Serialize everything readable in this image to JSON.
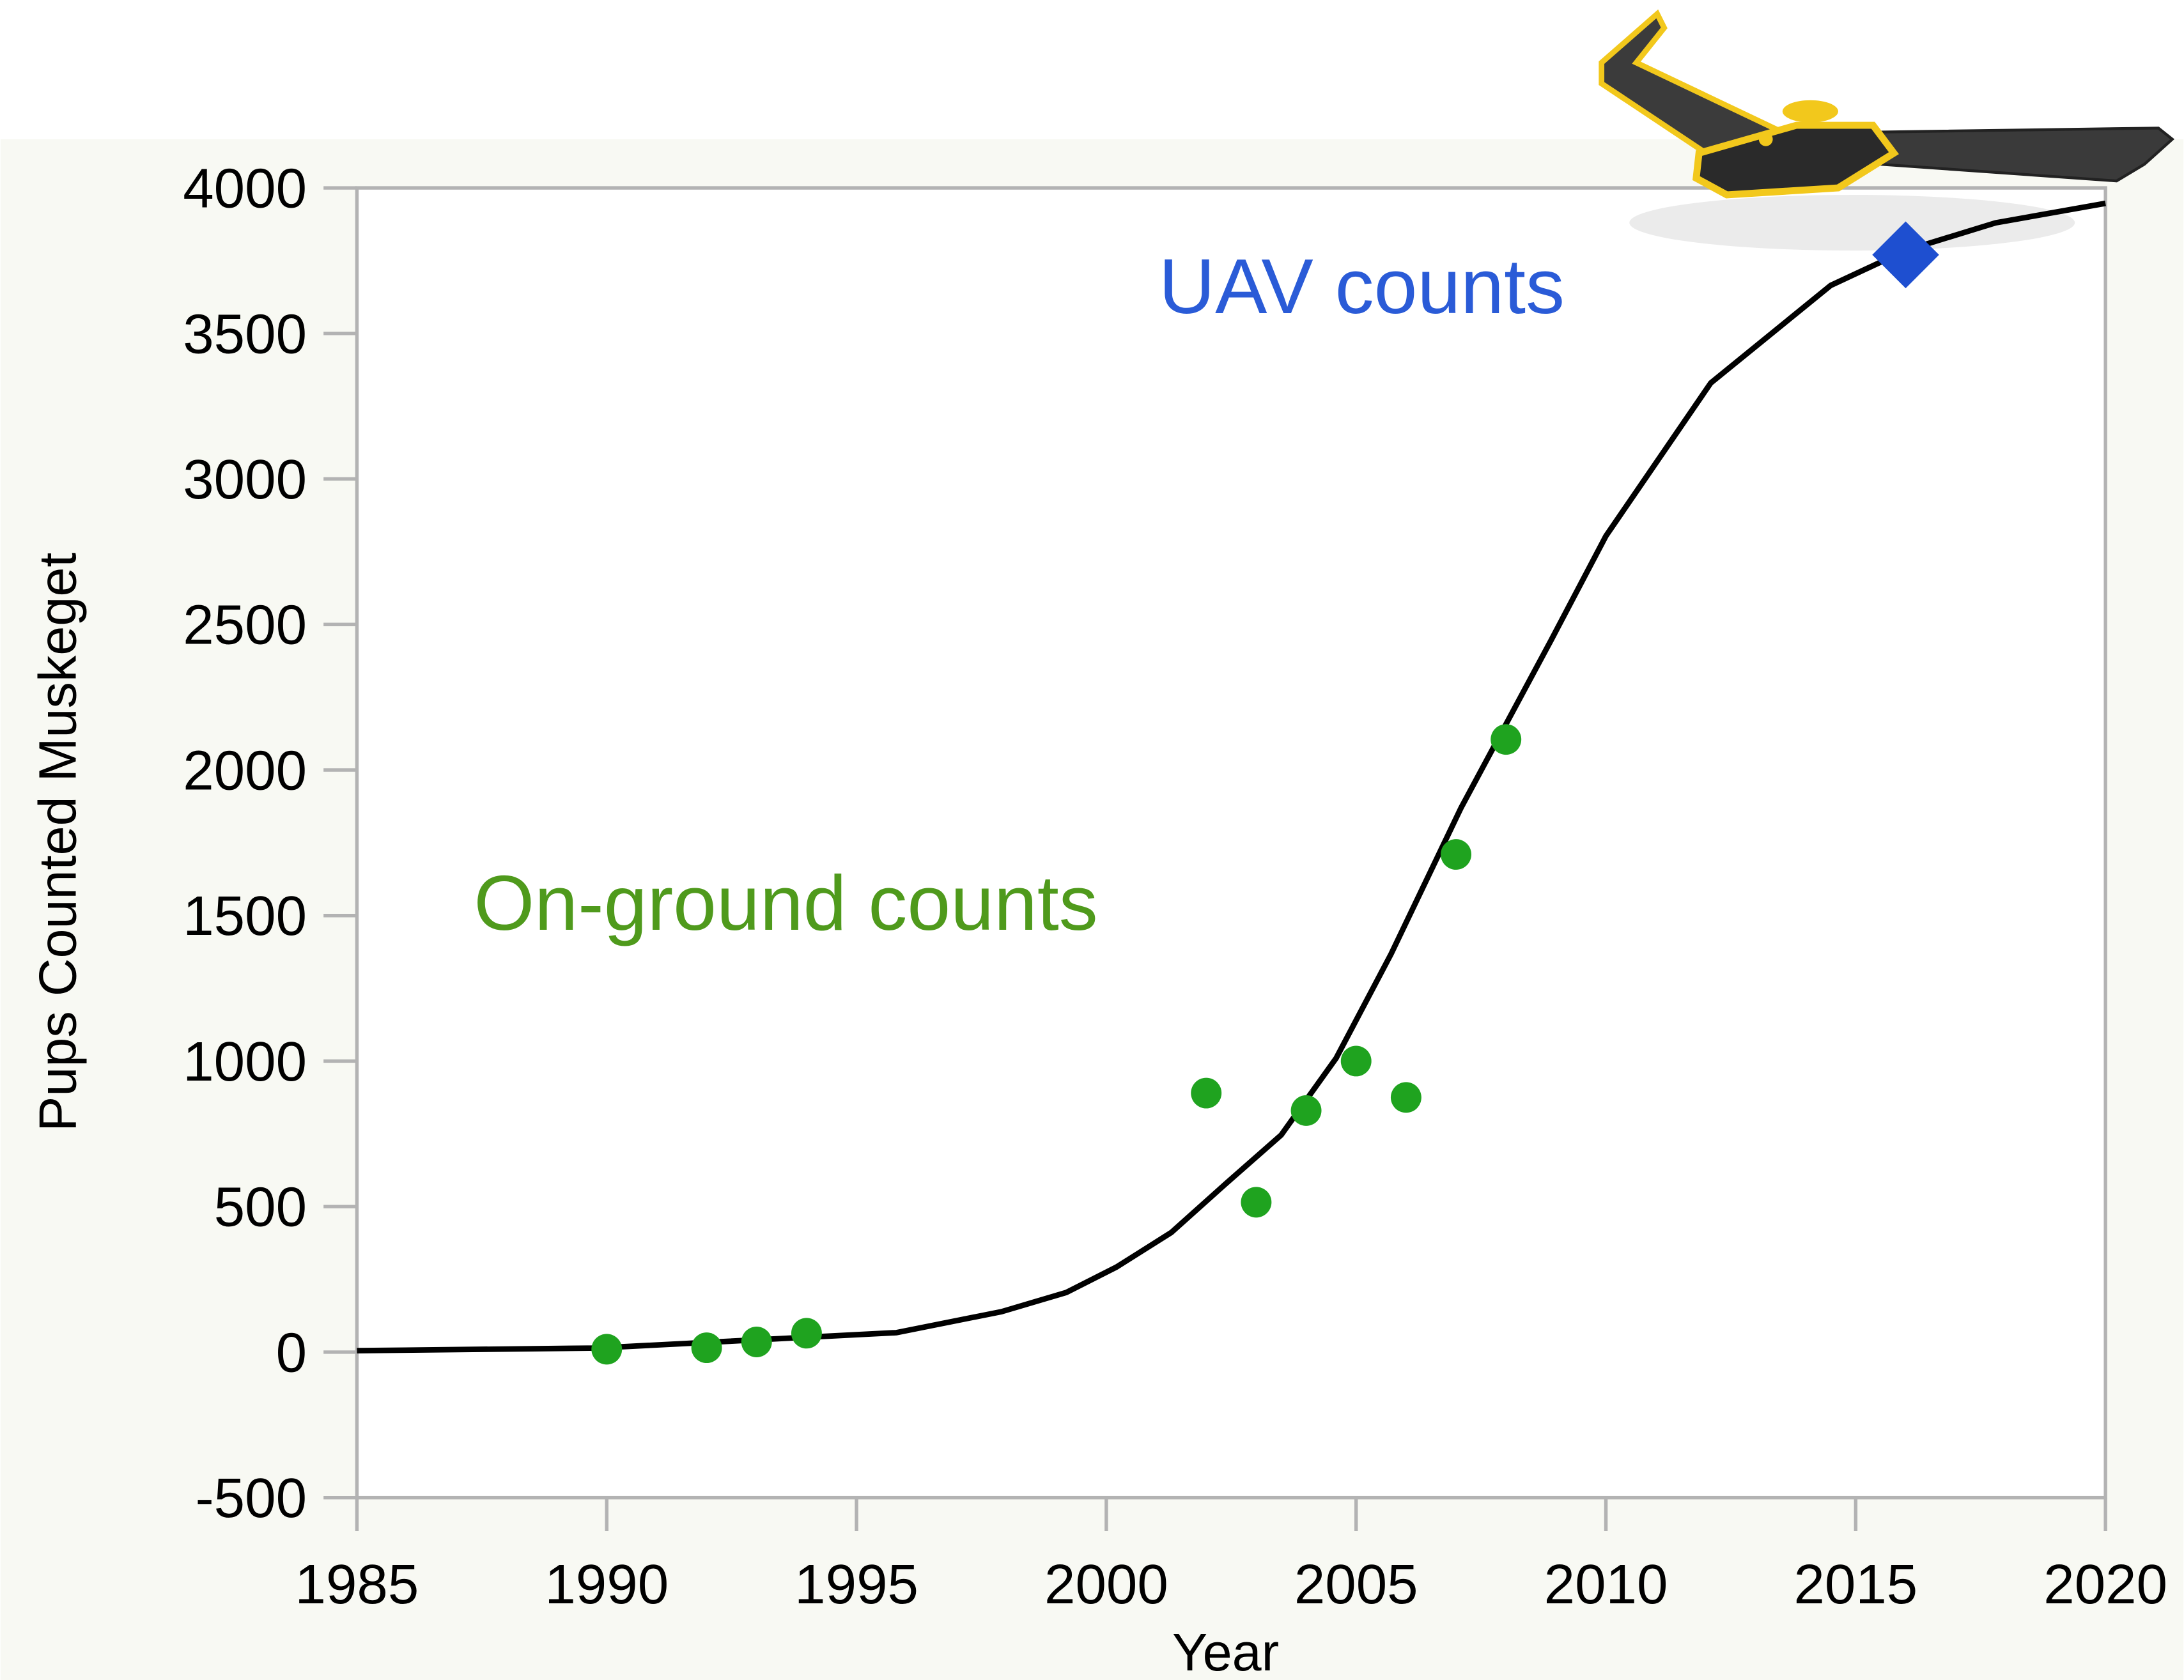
{
  "chart_data": {
    "type": "scatter",
    "x_label": "Year",
    "y_label": "Pups Counted Muskeget",
    "xlim": [
      1985,
      2020
    ],
    "xticks": [
      1985,
      1990,
      1995,
      2000,
      2005,
      2010,
      2015,
      2020
    ],
    "ylim": [
      -500,
      4000
    ],
    "yticks": [
      -500,
      0,
      500,
      1000,
      1500,
      2000,
      2500,
      3000,
      3500,
      4000
    ],
    "series": [
      {
        "type": "line",
        "color": "#000000",
        "x": [
          1985,
          1989.8,
          1995.8,
          1997.9,
          1999.2,
          2000.2,
          2001.3,
          2002.4,
          2003.5,
          2004.6,
          2005.7,
          2007.1,
          2008.9,
          2010,
          2012.1,
          2014.5,
          2016,
          2017.8,
          2020
        ],
        "values": [
          5,
          14,
          67,
          139,
          205,
          292,
          411,
          580,
          746,
          1010,
          1368,
          1870,
          2445,
          2804,
          3330,
          3665,
          3785,
          3880,
          3947
        ]
      },
      {
        "type": "scatter",
        "name": "On-ground counts",
        "color": "#1fa31f",
        "marker": "circle",
        "x": [
          1990,
          1992,
          1993,
          1994,
          2002,
          2003,
          2004,
          2005,
          2006,
          2007,
          2008
        ],
        "values": [
          10,
          15,
          35,
          65,
          890,
          515,
          830,
          1000,
          875,
          1710,
          2105
        ]
      },
      {
        "type": "scatter",
        "name": "UAV counts",
        "color": "#1e4fd0",
        "marker": "diamond",
        "x": [
          2016
        ],
        "values": [
          3770
        ]
      }
    ]
  }
}
